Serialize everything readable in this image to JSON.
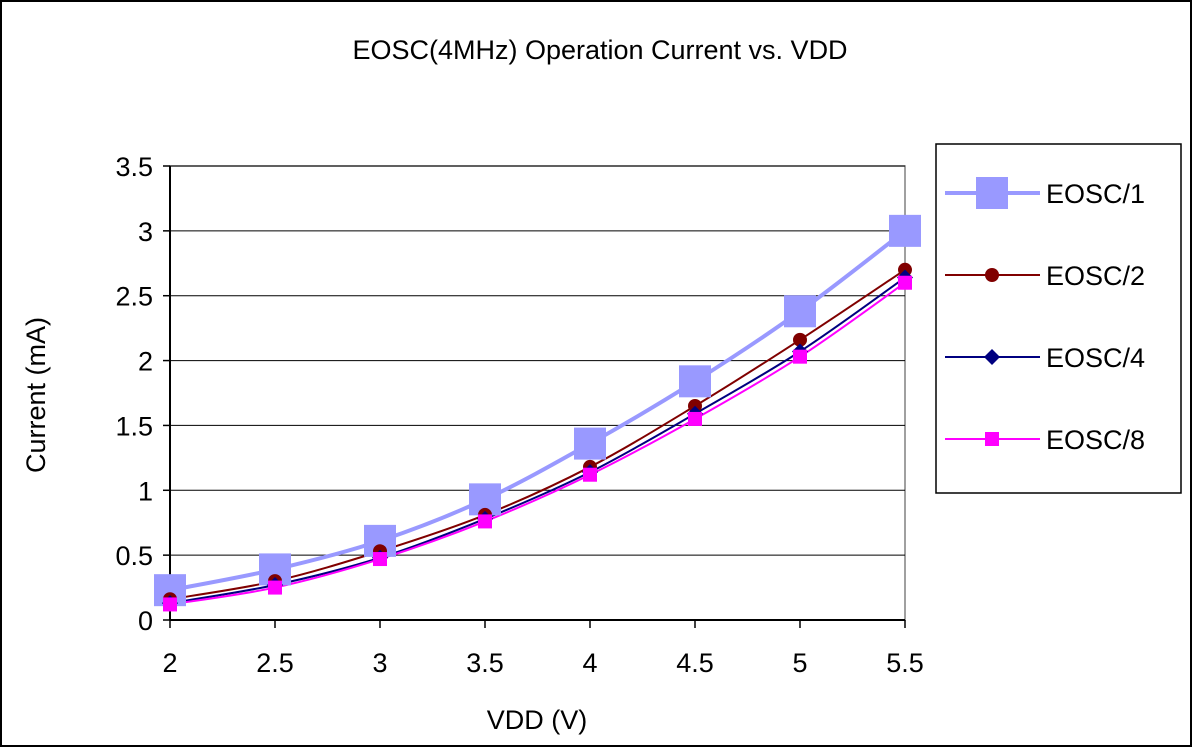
{
  "chart_data": {
    "type": "line",
    "title": "EOSC(4MHz) Operation Current vs. VDD",
    "xlabel": "VDD (V)",
    "ylabel": "Current (mA)",
    "x": [
      2,
      2.5,
      3,
      3.5,
      4,
      4.5,
      5,
      5.5
    ],
    "x_tick_labels": [
      "2",
      "2.5",
      "3",
      "3.5",
      "4",
      "4.5",
      "5",
      "5.5"
    ],
    "ylim": [
      0,
      3.5
    ],
    "y_ticks": [
      0,
      0.5,
      1,
      1.5,
      2,
      2.5,
      3,
      3.5
    ],
    "y_tick_labels": [
      "0",
      "0.5",
      "1",
      "1.5",
      "2",
      "2.5",
      "3",
      "3.5"
    ],
    "grid": "horizontal",
    "legend_position": "right",
    "series": [
      {
        "name": "EOSC/1",
        "values": [
          0.23,
          0.39,
          0.61,
          0.93,
          1.36,
          1.84,
          2.38,
          3.0
        ],
        "color": "#9999ff",
        "marker": "square-large"
      },
      {
        "name": "EOSC/2",
        "values": [
          0.16,
          0.3,
          0.53,
          0.81,
          1.18,
          1.65,
          2.16,
          2.7
        ],
        "color": "#800000",
        "marker": "circle"
      },
      {
        "name": "EOSC/4",
        "values": [
          0.13,
          0.27,
          0.48,
          0.78,
          1.14,
          1.59,
          2.07,
          2.64
        ],
        "color": "#000080",
        "marker": "diamond"
      },
      {
        "name": "EOSC/8",
        "values": [
          0.12,
          0.25,
          0.47,
          0.76,
          1.12,
          1.55,
          2.03,
          2.6
        ],
        "color": "#ff00ff",
        "marker": "square"
      }
    ]
  }
}
